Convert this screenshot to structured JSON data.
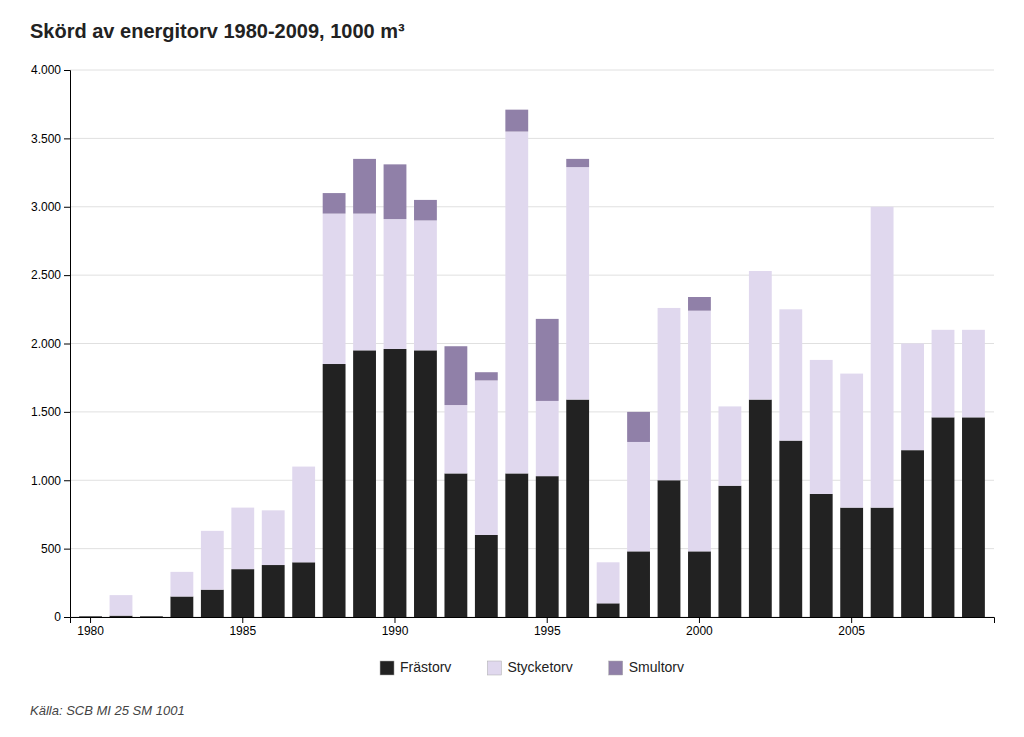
{
  "chart_data": {
    "type": "bar",
    "title": "Skörd av energitorv 1980-2009, 1000 m³",
    "annotations": [
      "Källa: SCB MI 25 SM 1001"
    ],
    "categories": [
      1980,
      null,
      null,
      null,
      null,
      1985,
      null,
      null,
      null,
      null,
      1990,
      null,
      null,
      null,
      null,
      1995,
      null,
      null,
      null,
      null,
      2000,
      null,
      null,
      null,
      null,
      2005,
      null,
      null,
      null,
      null
    ],
    "series": [
      {
        "name": "Frästorv",
        "color": "#222222",
        "values": [
          5,
          10,
          5,
          150,
          200,
          350,
          380,
          400,
          1850,
          1950,
          1960,
          1950,
          1050,
          600,
          1050,
          1030,
          1590,
          100,
          480,
          1000,
          480,
          960,
          1590,
          1290,
          900,
          800,
          800,
          1220,
          1460,
          1460
        ]
      },
      {
        "name": "Stycketorv",
        "color": "#e0d8ee",
        "values": [
          0,
          150,
          0,
          180,
          430,
          450,
          400,
          700,
          1100,
          1000,
          950,
          950,
          500,
          1130,
          2500,
          550,
          1700,
          300,
          800,
          1260,
          1760,
          580,
          940,
          960,
          980,
          980,
          2200,
          780,
          640,
          640
        ]
      },
      {
        "name": "Smultorv",
        "color": "#9080a8",
        "values": [
          0,
          0,
          0,
          0,
          0,
          0,
          0,
          0,
          150,
          400,
          400,
          150,
          430,
          60,
          160,
          600,
          60,
          0,
          220,
          0,
          100,
          0,
          0,
          0,
          0,
          0,
          0,
          0,
          0,
          0
        ]
      }
    ],
    "stacked": true,
    "ylim": [
      0,
      4000
    ],
    "yticks": [
      0,
      500,
      {
        "value": 1000,
        "label": "1.000"
      },
      {
        "value": 1500,
        "label": "1.500"
      },
      {
        "value": 2000,
        "label": "2.000"
      },
      {
        "value": 2500,
        "label": "2.500"
      },
      {
        "value": 3000,
        "label": "3.000"
      },
      {
        "value": 3500,
        "label": "3.500"
      },
      {
        "value": 4000,
        "label": "4.000"
      }
    ],
    "grid": true,
    "legend": "bottom"
  }
}
